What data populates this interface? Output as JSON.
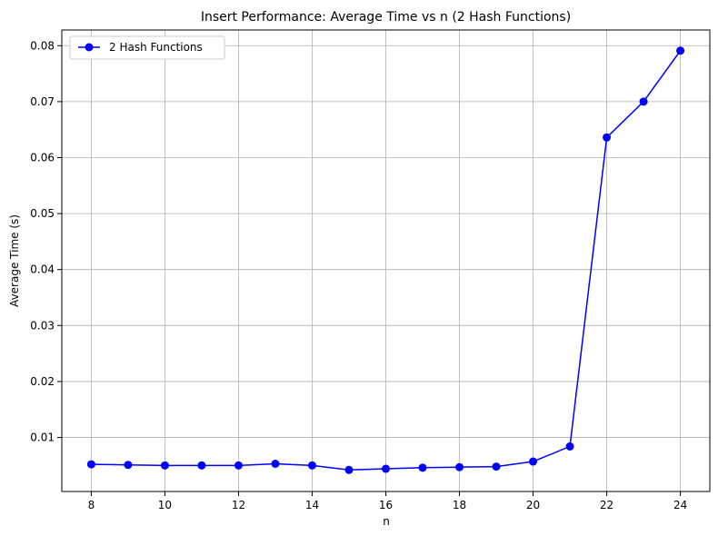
{
  "chart_data": {
    "type": "line",
    "title": "Insert Performance: Average Time vs n (2 Hash Functions)",
    "xlabel": "n",
    "ylabel": "Average Time (s)",
    "xlim": [
      7.2,
      24.8
    ],
    "ylim": [
      0.00035,
      0.0828
    ],
    "x_ticks": [
      8,
      10,
      12,
      14,
      16,
      18,
      20,
      22,
      24
    ],
    "y_ticks": [
      0.01,
      0.02,
      0.03,
      0.04,
      0.05,
      0.06,
      0.07,
      0.08
    ],
    "y_tick_labels": [
      "0.01",
      "0.02",
      "0.03",
      "0.04",
      "0.05",
      "0.06",
      "0.07",
      "0.08"
    ],
    "grid": true,
    "legend_position": "top-left",
    "series": [
      {
        "name": "2 Hash Functions",
        "color": "#0000ff",
        "marker": "circle",
        "x": [
          8,
          9,
          10,
          11,
          12,
          13,
          14,
          15,
          16,
          17,
          18,
          19,
          20,
          21,
          22,
          23,
          24
        ],
        "y": [
          0.0052,
          0.0051,
          0.005,
          0.005,
          0.005,
          0.0053,
          0.005,
          0.0042,
          0.0044,
          0.0046,
          0.0047,
          0.0048,
          0.0057,
          0.0084,
          0.0636,
          0.07,
          0.0791
        ]
      }
    ]
  }
}
